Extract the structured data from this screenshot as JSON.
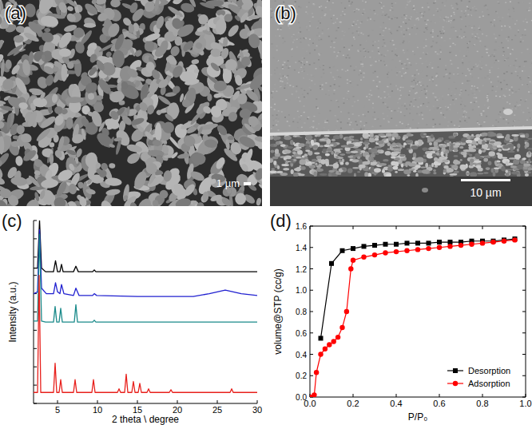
{
  "images": [
    {
      "label": "(a)",
      "scale_bar": "1 µm"
    },
    {
      "label": "(b)",
      "scale_bar": "10 µm"
    }
  ],
  "chart_data": [
    {
      "type": "line",
      "title": "(c)",
      "x_label": "2 theta \\ degree",
      "y_label": "Intensity (a.u.)",
      "xlim": [
        2,
        30
      ],
      "xticks": [
        5,
        10,
        15,
        20,
        25,
        30
      ],
      "ylim": [
        0,
        100
      ],
      "yticks": [
        0,
        10,
        20,
        30,
        40,
        50,
        60,
        70,
        80,
        90,
        100
      ],
      "tick_labels": "x",
      "grid": false,
      "series": [
        {
          "color": "#000000",
          "x": [
            2,
            2.5,
            2.75,
            3.0,
            3.5,
            4.5,
            4.75,
            5.0,
            5.3,
            5.5,
            5.7,
            7.0,
            7.3,
            7.6,
            9.4,
            9.6,
            9.8,
            30
          ],
          "values": [
            74,
            74,
            100,
            74,
            72,
            72,
            78,
            72,
            72,
            76,
            72,
            72,
            75,
            72,
            72,
            73,
            72,
            72
          ]
        },
        {
          "color": "#2020d0",
          "x": [
            2,
            2.5,
            2.75,
            3.0,
            3.6,
            4.5,
            4.75,
            5.0,
            5.3,
            5.5,
            5.8,
            7.0,
            7.3,
            7.7,
            9.4,
            9.6,
            9.9,
            15,
            22,
            24,
            26,
            28,
            30
          ],
          "values": [
            60,
            61,
            95,
            63,
            60,
            60,
            66,
            61,
            60,
            65,
            60,
            59,
            63,
            59,
            59,
            60,
            59,
            58.5,
            58.5,
            60,
            62,
            60,
            59
          ]
        },
        {
          "color": "#1a8a8a",
          "x": [
            2,
            2.5,
            2.75,
            3.0,
            3.5,
            4.5,
            4.7,
            4.9,
            5.2,
            5.4,
            5.6,
            7.1,
            7.3,
            7.5,
            9.4,
            9.6,
            9.8,
            30
          ],
          "values": [
            45,
            45,
            92.5,
            45,
            44.5,
            44.5,
            53,
            44.5,
            44.5,
            52,
            44.5,
            44.5,
            54,
            44.5,
            44.5,
            45.5,
            44.5,
            44.5
          ]
        },
        {
          "color": "#e8201c",
          "x": [
            2,
            2.5,
            2.7,
            2.9,
            4.5,
            4.7,
            4.9,
            5.2,
            5.4,
            5.6,
            7.0,
            7.2,
            7.4,
            9.3,
            9.5,
            9.7,
            12.5,
            12.7,
            12.9,
            13.4,
            13.6,
            13.8,
            14.3,
            14.5,
            14.7,
            15.1,
            15.3,
            15.5,
            16.2,
            16.4,
            16.6,
            19.0,
            19.2,
            19.4,
            26.6,
            26.8,
            27.0,
            30
          ],
          "values": [
            6,
            6,
            70,
            6,
            6,
            22,
            6,
            6,
            13,
            6,
            6,
            13,
            6,
            6,
            13,
            6,
            6,
            8,
            6,
            6,
            16,
            6,
            6,
            12,
            6,
            6,
            11,
            6,
            6,
            8,
            6,
            6,
            7.5,
            6,
            6,
            8,
            6,
            6
          ]
        }
      ]
    },
    {
      "type": "line",
      "title": "(d)",
      "x_label": "P/P₀",
      "y_label": "volume@STP (cc/g)",
      "xlim": [
        0,
        1
      ],
      "xticks": [
        {
          "value": 0,
          "label": "0.0"
        },
        {
          "value": 0.2,
          "label": "0.2"
        },
        {
          "value": 0.4,
          "label": "0.4"
        },
        {
          "value": 0.6,
          "label": "0.6"
        },
        {
          "value": 0.8,
          "label": "0.8"
        },
        {
          "value": 1,
          "label": "1.0"
        }
      ],
      "ylim": [
        0,
        1.6
      ],
      "yticks": [
        {
          "value": 0,
          "label": "0.0"
        },
        {
          "value": 0.2,
          "label": "0.2"
        },
        {
          "value": 0.4,
          "label": "0.4"
        },
        {
          "value": 0.6,
          "label": "0.6"
        },
        {
          "value": 0.8,
          "label": "0.8"
        },
        {
          "value": 1,
          "label": "1.0"
        },
        {
          "value": 1.2,
          "label": "1.2"
        },
        {
          "value": 1.4,
          "label": "1.4"
        },
        {
          "value": 1.6,
          "label": "1.6"
        }
      ],
      "legend": "lower right",
      "grid": false,
      "series": [
        {
          "name": "Desorption",
          "color": "#000000",
          "marker": "square",
          "x": [
            0.05,
            0.1,
            0.15,
            0.2,
            0.25,
            0.3,
            0.35,
            0.4,
            0.45,
            0.5,
            0.55,
            0.6,
            0.65,
            0.7,
            0.75,
            0.8,
            0.85,
            0.9,
            0.95
          ],
          "values": [
            0.55,
            1.25,
            1.37,
            1.39,
            1.41,
            1.42,
            1.43,
            1.43,
            1.44,
            1.44,
            1.44,
            1.45,
            1.45,
            1.45,
            1.46,
            1.46,
            1.46,
            1.47,
            1.48
          ]
        },
        {
          "name": "Adsorption",
          "color": "#ff0000",
          "marker": "circle",
          "x": [
            0.0,
            0.02,
            0.03,
            0.05,
            0.07,
            0.09,
            0.11,
            0.13,
            0.15,
            0.17,
            0.19,
            0.2,
            0.25,
            0.3,
            0.35,
            0.4,
            0.45,
            0.5,
            0.55,
            0.6,
            0.65,
            0.7,
            0.75,
            0.8,
            0.85,
            0.9,
            0.95
          ],
          "values": [
            0.0,
            0.02,
            0.23,
            0.4,
            0.45,
            0.49,
            0.52,
            0.56,
            0.65,
            0.8,
            1.2,
            1.28,
            1.31,
            1.33,
            1.35,
            1.36,
            1.37,
            1.38,
            1.39,
            1.4,
            1.41,
            1.42,
            1.43,
            1.44,
            1.45,
            1.46,
            1.47
          ]
        }
      ]
    }
  ]
}
